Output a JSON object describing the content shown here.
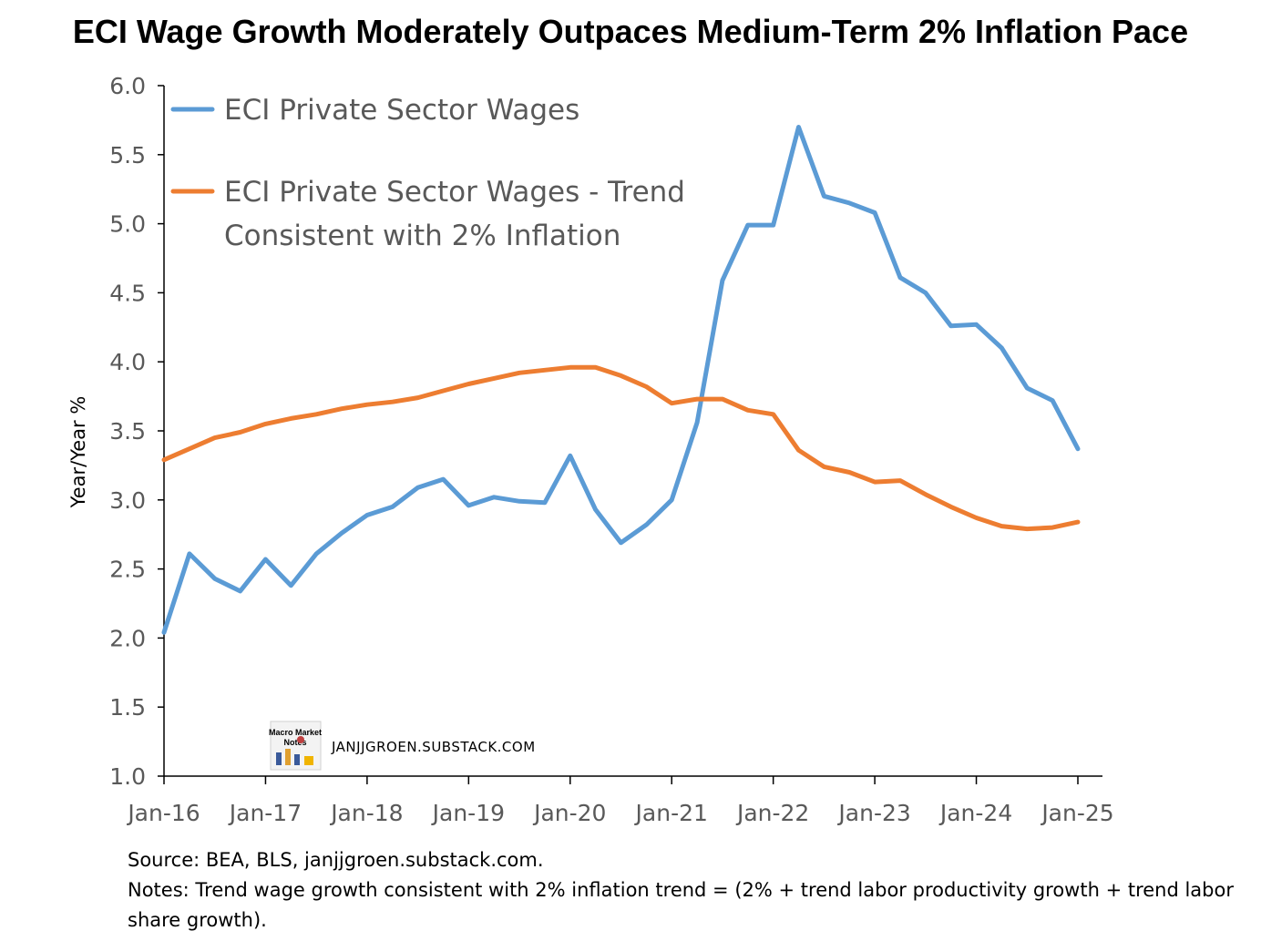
{
  "chart_data": {
    "type": "line",
    "title": "ECI Wage Growth Moderately Outpaces Medium-Term 2% Inflation Pace",
    "ylabel": "Year/Year %",
    "xlabel": "",
    "ylim": [
      1.0,
      6.0
    ],
    "y_ticks": [
      "1.0",
      "1.5",
      "2.0",
      "2.5",
      "3.0",
      "3.5",
      "4.0",
      "4.5",
      "5.0",
      "5.5",
      "6.0"
    ],
    "x_ticks": [
      "Jan-16",
      "Jan-17",
      "Jan-18",
      "Jan-19",
      "Jan-20",
      "Jan-21",
      "Jan-22",
      "Jan-23",
      "Jan-24",
      "Jan-25"
    ],
    "grid": false,
    "legend_position": "top-left",
    "x": [
      "2016-Q1",
      "2016-Q2",
      "2016-Q3",
      "2016-Q4",
      "2017-Q1",
      "2017-Q2",
      "2017-Q3",
      "2017-Q4",
      "2018-Q1",
      "2018-Q2",
      "2018-Q3",
      "2018-Q4",
      "2019-Q1",
      "2019-Q2",
      "2019-Q3",
      "2019-Q4",
      "2020-Q1",
      "2020-Q2",
      "2020-Q3",
      "2020-Q4",
      "2021-Q1",
      "2021-Q2",
      "2021-Q3",
      "2021-Q4",
      "2022-Q1",
      "2022-Q2",
      "2022-Q3",
      "2022-Q4",
      "2023-Q1",
      "2023-Q2",
      "2023-Q3",
      "2023-Q4",
      "2024-Q1",
      "2024-Q2",
      "2024-Q3",
      "2024-Q4",
      "2025-Q1"
    ],
    "series": [
      {
        "name": "ECI Private Sector Wages",
        "color": "#5B9BD5",
        "values": [
          2.04,
          2.61,
          2.43,
          2.34,
          2.57,
          2.38,
          2.61,
          2.76,
          2.89,
          2.95,
          3.09,
          3.15,
          2.96,
          3.02,
          2.99,
          2.98,
          3.32,
          2.93,
          2.69,
          2.82,
          3.0,
          3.56,
          4.59,
          4.99,
          4.99,
          5.7,
          5.2,
          5.15,
          5.08,
          4.61,
          4.5,
          4.26,
          4.27,
          4.1,
          3.81,
          3.72,
          3.37
        ]
      },
      {
        "name": "ECI Private Sector Wages - Trend Consistent with 2% Inflation",
        "name_lines": [
          "ECI Private Sector Wages - Trend",
          "Consistent with 2% Inflation"
        ],
        "color": "#ED7D31",
        "values": [
          3.29,
          3.37,
          3.45,
          3.49,
          3.55,
          3.59,
          3.62,
          3.66,
          3.69,
          3.71,
          3.74,
          3.79,
          3.84,
          3.88,
          3.92,
          3.94,
          3.96,
          3.96,
          3.9,
          3.82,
          3.7,
          3.73,
          3.73,
          3.65,
          3.62,
          3.36,
          3.24,
          3.2,
          3.13,
          3.14,
          3.04,
          2.95,
          2.87,
          2.81,
          2.79,
          2.8,
          2.84
        ]
      }
    ],
    "annotations": {
      "watermark": "JANJJGROEN.SUBSTACK.COM",
      "logo_text": [
        "Macro Market",
        "Notes"
      ]
    }
  },
  "footnotes": {
    "source": "Source: BEA, BLS, janjjgroen.substack.com.",
    "notes": "Notes: Trend wage growth consistent with 2% inflation trend = (2% + trend labor productivity growth + trend labor share growth)."
  }
}
